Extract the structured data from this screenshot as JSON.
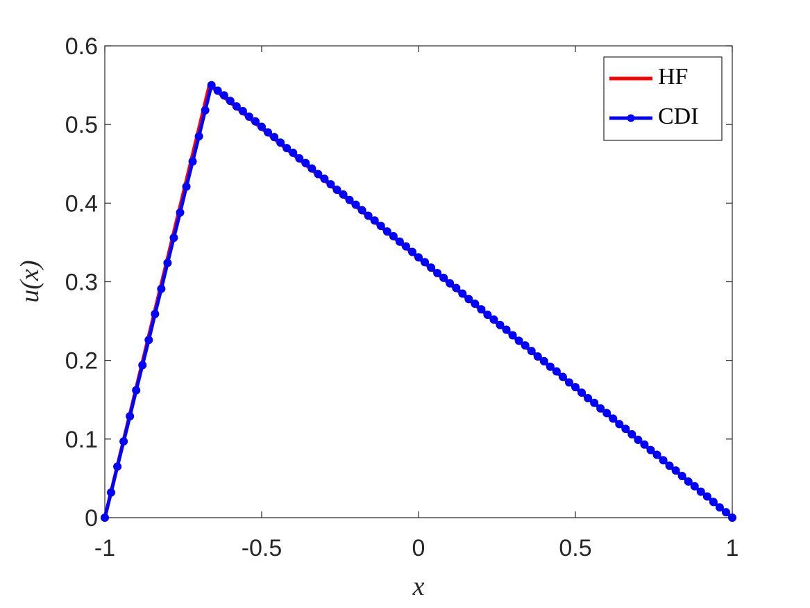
{
  "chart_data": {
    "type": "line",
    "xlabel": "x",
    "ylabel": "u(x)",
    "xlim": [
      -1,
      1
    ],
    "ylim": [
      0,
      0.6
    ],
    "xticks": [
      -1,
      -0.5,
      0,
      0.5,
      1
    ],
    "yticks": [
      0,
      0.1,
      0.2,
      0.3,
      0.4,
      0.5,
      0.6
    ],
    "grid": false,
    "legend": "northeast",
    "series": [
      {
        "name": "HF",
        "color": "#ff0000",
        "marker": "none",
        "x": [
          -1,
          -0.6667,
          1
        ],
        "values": [
          0,
          0.55,
          0
        ]
      },
      {
        "name": "CDI",
        "color": "#0000ff",
        "marker": "circle",
        "x": [
          -1,
          -0.98,
          -0.96,
          -0.94,
          -0.92,
          -0.9,
          -0.88,
          -0.86,
          -0.84,
          -0.82,
          -0.8,
          -0.78,
          -0.76,
          -0.74,
          -0.72,
          -0.7,
          -0.68,
          -0.66,
          -0.64,
          -0.62,
          -0.6,
          -0.58,
          -0.56,
          -0.54,
          -0.52,
          -0.5,
          -0.48,
          -0.46,
          -0.44,
          -0.42,
          -0.4,
          -0.38,
          -0.36,
          -0.34,
          -0.32,
          -0.3,
          -0.28,
          -0.26,
          -0.24,
          -0.22,
          -0.2,
          -0.18,
          -0.16,
          -0.14,
          -0.12,
          -0.1,
          -0.08,
          -0.06,
          -0.04,
          -0.02,
          0,
          0.02,
          0.04,
          0.06,
          0.08,
          0.1,
          0.12,
          0.14,
          0.16,
          0.18,
          0.2,
          0.22,
          0.24,
          0.26,
          0.28,
          0.3,
          0.32,
          0.34,
          0.36,
          0.38,
          0.4,
          0.42,
          0.44,
          0.46,
          0.48,
          0.5,
          0.52,
          0.54,
          0.56,
          0.58,
          0.6,
          0.62,
          0.64,
          0.66,
          0.68,
          0.7,
          0.72,
          0.74,
          0.76,
          0.78,
          0.8,
          0.82,
          0.84,
          0.86,
          0.88,
          0.9,
          0.92,
          0.94,
          0.96,
          0.98,
          1
        ],
        "values": [
          0,
          0.032,
          0.065,
          0.097,
          0.129,
          0.162,
          0.194,
          0.226,
          0.259,
          0.291,
          0.324,
          0.356,
          0.388,
          0.421,
          0.453,
          0.485,
          0.518,
          0.55,
          0.543,
          0.537,
          0.53,
          0.523,
          0.517,
          0.51,
          0.504,
          0.497,
          0.49,
          0.484,
          0.477,
          0.47,
          0.464,
          0.457,
          0.451,
          0.444,
          0.437,
          0.431,
          0.424,
          0.417,
          0.411,
          0.404,
          0.398,
          0.391,
          0.384,
          0.378,
          0.371,
          0.364,
          0.358,
          0.351,
          0.345,
          0.338,
          0.331,
          0.325,
          0.318,
          0.311,
          0.305,
          0.298,
          0.292,
          0.285,
          0.278,
          0.272,
          0.265,
          0.258,
          0.252,
          0.245,
          0.239,
          0.232,
          0.225,
          0.219,
          0.212,
          0.205,
          0.199,
          0.192,
          0.186,
          0.179,
          0.172,
          0.166,
          0.159,
          0.152,
          0.146,
          0.139,
          0.133,
          0.126,
          0.119,
          0.113,
          0.106,
          0.099,
          0.093,
          0.086,
          0.08,
          0.073,
          0.066,
          0.06,
          0.053,
          0.046,
          0.04,
          0.033,
          0.027,
          0.02,
          0.013,
          0.007,
          0
        ]
      }
    ]
  }
}
